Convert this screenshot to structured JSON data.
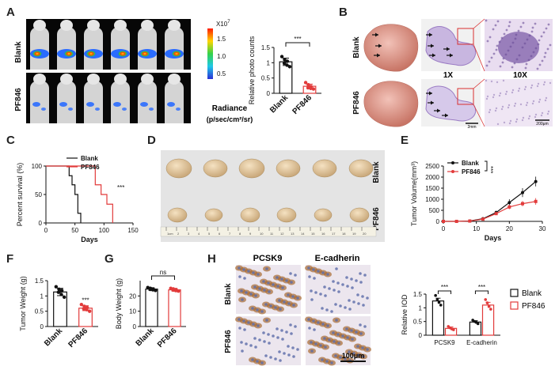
{
  "panels": {
    "A": {
      "label": "A",
      "rows": [
        "Blank",
        "PF846"
      ],
      "colorbar": {
        "scale_label": "X10",
        "scale_exp": "7",
        "ticks": [
          "1.5",
          "1.0",
          "0.5"
        ],
        "title_line1": "Radiance",
        "title_line2": "(p/sec/cm²/sr)"
      },
      "imaging_colors": {
        "blank_hotspot": "#ff2200",
        "blank_core": "#ffd200",
        "signal": "#2a6cff",
        "background": "#050505"
      }
    },
    "B": {
      "label": "B",
      "rows": [
        "Blank",
        "PF846"
      ],
      "magnifications": [
        "1X",
        "10X"
      ],
      "scale_bars": [
        "2mm",
        "200μm"
      ],
      "tissue_colors": {
        "lung": "#e8a79a",
        "he_stain": "#9b7cc4",
        "highlight": "#d93030"
      }
    },
    "C": {
      "label": "C"
    },
    "D": {
      "label": "D",
      "rows": [
        "Blank",
        "PF846"
      ],
      "ruler_marks": [
        "1cm",
        "2",
        "3",
        "4",
        "5",
        "6",
        "7",
        "8",
        "9",
        "10",
        "11",
        "12",
        "13",
        "14",
        "15",
        "16",
        "17",
        "18",
        "19",
        "20"
      ]
    },
    "E": {
      "label": "E"
    },
    "F": {
      "label": "F"
    },
    "G": {
      "label": "G"
    },
    "H": {
      "label": "H",
      "stains": [
        "PCSK9",
        "E-cadherin"
      ],
      "rows": [
        "Blank",
        "PF846"
      ],
      "scale_bar": "100μm",
      "ihc_colors": {
        "background": "#e7e1ea",
        "nuclei": "#5a6aa8",
        "dab": "#a86a32"
      }
    }
  },
  "chart_data": [
    {
      "id": "A_counts",
      "type": "bar",
      "ylabel": "Relative photo counts",
      "categories": [
        "Blank",
        "PF846"
      ],
      "values": [
        1.03,
        0.23
      ],
      "errors": [
        0.12,
        0.07
      ],
      "points": [
        [
          1.2,
          1.1,
          1.05,
          0.98,
          0.92,
          0.87
        ],
        [
          0.35,
          0.28,
          0.22,
          0.18,
          0.16,
          0.14
        ]
      ],
      "ylim": [
        0,
        1.5
      ],
      "yticks": [
        0,
        0.5,
        1.0,
        1.5
      ],
      "significance": "***",
      "colors": [
        "#111111",
        "#e23b3b"
      ]
    },
    {
      "id": "C_survival",
      "type": "line",
      "ylabel": "Percent survival (%)",
      "xlabel": "Days",
      "xlim": [
        0,
        150
      ],
      "ylim": [
        0,
        100
      ],
      "xticks": [
        0,
        50,
        100,
        150
      ],
      "yticks": [
        0,
        50,
        100
      ],
      "legend": "top-right",
      "series": [
        {
          "name": "Blank",
          "color": "#111111",
          "x": [
            0,
            40,
            40,
            45,
            45,
            50,
            50,
            55,
            55,
            60,
            60
          ],
          "y": [
            100,
            100,
            83,
            83,
            67,
            67,
            50,
            50,
            17,
            17,
            0
          ]
        },
        {
          "name": "PF846",
          "color": "#e23b3b",
          "x": [
            0,
            85,
            85,
            95,
            95,
            105,
            105,
            115,
            115
          ],
          "y": [
            100,
            100,
            67,
            67,
            50,
            50,
            33,
            33,
            0
          ]
        }
      ],
      "significance": "***"
    },
    {
      "id": "E_growth",
      "type": "line",
      "ylabel": "Tumor Volume(mm³)",
      "xlabel": "Days",
      "xlim": [
        0,
        30
      ],
      "ylim": [
        0,
        2500
      ],
      "xticks": [
        0,
        10,
        20,
        30
      ],
      "yticks": [
        0,
        500,
        1000,
        1500,
        2000,
        2500
      ],
      "legend": "top-left",
      "series": [
        {
          "name": "Blank",
          "color": "#111111",
          "x": [
            0,
            4,
            8,
            12,
            16,
            20,
            24,
            28
          ],
          "y": [
            0,
            0,
            20,
            120,
            400,
            850,
            1300,
            1800
          ],
          "err": [
            0,
            0,
            10,
            40,
            80,
            150,
            200,
            220
          ]
        },
        {
          "name": "PF846",
          "color": "#e23b3b",
          "x": [
            0,
            4,
            8,
            12,
            16,
            20,
            24,
            28
          ],
          "y": [
            0,
            0,
            15,
            100,
            350,
            650,
            800,
            900
          ],
          "err": [
            0,
            0,
            8,
            30,
            60,
            100,
            120,
            150
          ]
        }
      ],
      "significance": "***"
    },
    {
      "id": "F_weight",
      "type": "bar",
      "ylabel": "Tumor Weight (g)",
      "categories": [
        "Blank",
        "PF846"
      ],
      "values": [
        1.13,
        0.6
      ],
      "errors": [
        0.12,
        0.08
      ],
      "points": [
        [
          1.3,
          1.22,
          1.18,
          1.12,
          1.05,
          0.96
        ],
        [
          0.72,
          0.66,
          0.62,
          0.58,
          0.55,
          0.5
        ]
      ],
      "ylim": [
        0,
        1.5
      ],
      "yticks": [
        0,
        0.5,
        1.0,
        1.5
      ],
      "significance": "***",
      "colors": [
        "#111111",
        "#e23b3b"
      ]
    },
    {
      "id": "G_body",
      "type": "bar",
      "ylabel": "Body Weight (g)",
      "categories": [
        "Blank",
        "PF846"
      ],
      "values": [
        24.5,
        24.0
      ],
      "errors": [
        0.8,
        0.8
      ],
      "points": [
        [
          25.5,
          25,
          24.6,
          24.3,
          24,
          23.6
        ],
        [
          25,
          24.6,
          24.2,
          23.8,
          23.5,
          23.2
        ]
      ],
      "ylim": [
        0,
        30
      ],
      "yticks": [
        0,
        10,
        20
      ],
      "significance": "ns",
      "colors": [
        "#111111",
        "#e23b3b"
      ]
    },
    {
      "id": "H_od",
      "type": "bar",
      "ylabel": "Relative IOD",
      "categories": [
        "PCSK9",
        "E-cadherin"
      ],
      "series": [
        {
          "name": "Blank",
          "color": "#111111",
          "values": [
            1.25,
            0.48
          ],
          "errors": [
            0.1,
            0.05
          ],
          "points": [
            [
              1.45,
              1.3,
              1.2,
              1.1
            ],
            [
              0.55,
              0.5,
              0.47,
              0.42
            ]
          ]
        },
        {
          "name": "PF846",
          "color": "#e23b3b",
          "values": [
            0.25,
            1.1
          ],
          "errors": [
            0.05,
            0.1
          ],
          "points": [
            [
              0.32,
              0.27,
              0.23,
              0.2
            ],
            [
              1.3,
              1.18,
              1.05,
              0.95
            ]
          ]
        }
      ],
      "ylim": [
        0,
        1.5
      ],
      "yticks": [
        0.0,
        0.5,
        1.0,
        1.5
      ],
      "significance": [
        "***",
        "***"
      ],
      "legend": "right"
    }
  ]
}
